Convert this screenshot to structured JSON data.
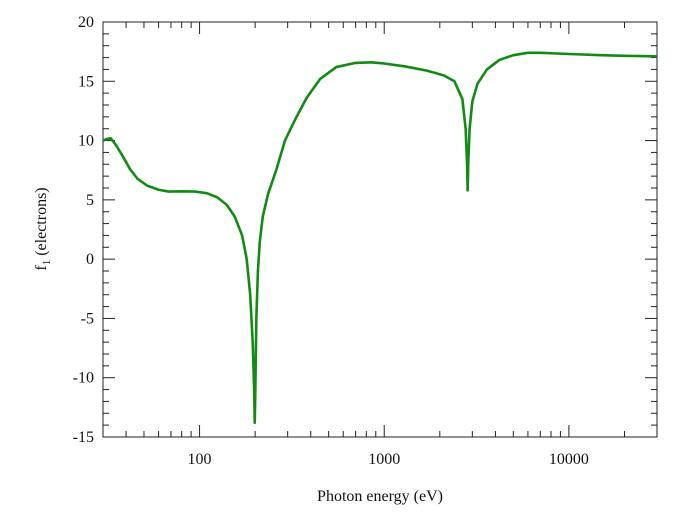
{
  "chart_data": {
    "type": "line",
    "title": "",
    "xlabel": "Photon energy (eV)",
    "ylabel_main": "f",
    "ylabel_sub": "1",
    "ylabel_rest": " (electrons)",
    "xscale": "log",
    "xlim": [
      30,
      30000
    ],
    "ylim": [
      -15,
      20
    ],
    "xticks": [
      100,
      1000,
      10000
    ],
    "xtick_labels": [
      "100",
      "1000",
      "10000"
    ],
    "yticks": [
      -15,
      -10,
      -5,
      0,
      5,
      10,
      15,
      20
    ],
    "ytick_labels": [
      "-15",
      "-10",
      "-5",
      "0",
      "5",
      "10",
      "15",
      "20"
    ],
    "grid": false,
    "series": [
      {
        "name": "f1",
        "color": "#138a13",
        "x": [
          30,
          31,
          33,
          35,
          38,
          42,
          46,
          52,
          60,
          68,
          80,
          95,
          110,
          125,
          140,
          155,
          170,
          180,
          188,
          194,
          197.5,
          199,
          200.5,
          203,
          207,
          212,
          220,
          235,
          260,
          290,
          330,
          380,
          450,
          550,
          700,
          850,
          1000,
          1300,
          1700,
          2100,
          2400,
          2650,
          2760,
          2810,
          2830,
          2850,
          2900,
          3000,
          3200,
          3600,
          4200,
          5000,
          6000,
          7000,
          10000,
          15000,
          20000,
          30000
        ],
        "y": [
          10.0,
          10.1,
          10.2,
          9.7,
          8.8,
          7.6,
          6.8,
          6.2,
          5.85,
          5.7,
          5.72,
          5.7,
          5.55,
          5.2,
          4.6,
          3.6,
          2.0,
          0,
          -3,
          -7,
          -11,
          -13.8,
          -11,
          -5,
          -1,
          1.5,
          3.6,
          5.5,
          7.5,
          10.0,
          11.8,
          13.6,
          15.2,
          16.2,
          16.55,
          16.6,
          16.5,
          16.25,
          15.9,
          15.5,
          15.0,
          13.5,
          11,
          8,
          5.8,
          8,
          11,
          13.3,
          14.8,
          16.0,
          16.8,
          17.2,
          17.4,
          17.4,
          17.3,
          17.2,
          17.15,
          17.1
        ]
      }
    ]
  }
}
